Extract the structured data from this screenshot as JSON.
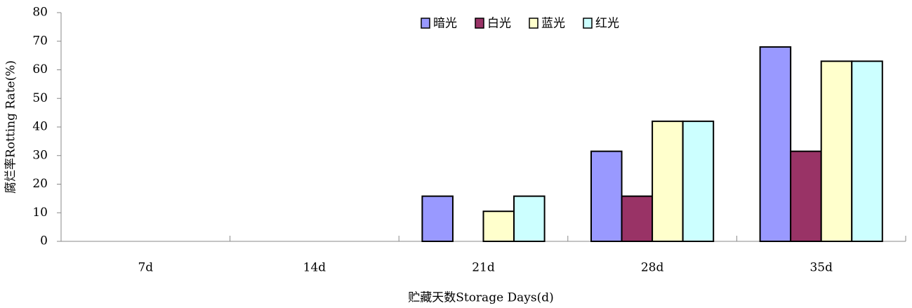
{
  "chart_data": {
    "type": "bar",
    "xlabel": "贮藏天数Storage Days(d)",
    "ylabel": "腐烂率Rotting Rate(%)",
    "categories": [
      "7d",
      "14d",
      "21d",
      "28d",
      "35d"
    ],
    "series": [
      {
        "name": "暗光",
        "color": "#9999ff",
        "values": [
          0,
          0,
          15.8,
          31.5,
          68
        ]
      },
      {
        "name": "白光",
        "color": "#993366",
        "values": [
          0,
          0,
          0,
          15.8,
          31.5
        ]
      },
      {
        "name": "蓝光",
        "color": "#ffffcc",
        "values": [
          0,
          0,
          10.5,
          42,
          63
        ]
      },
      {
        "name": "红光",
        "color": "#ccffff",
        "values": [
          0,
          0,
          15.8,
          42,
          63
        ]
      }
    ],
    "ylim": [
      0,
      80
    ],
    "yticks": [
      0,
      10,
      20,
      30,
      40,
      50,
      60,
      70,
      80
    ],
    "legend": "top"
  }
}
